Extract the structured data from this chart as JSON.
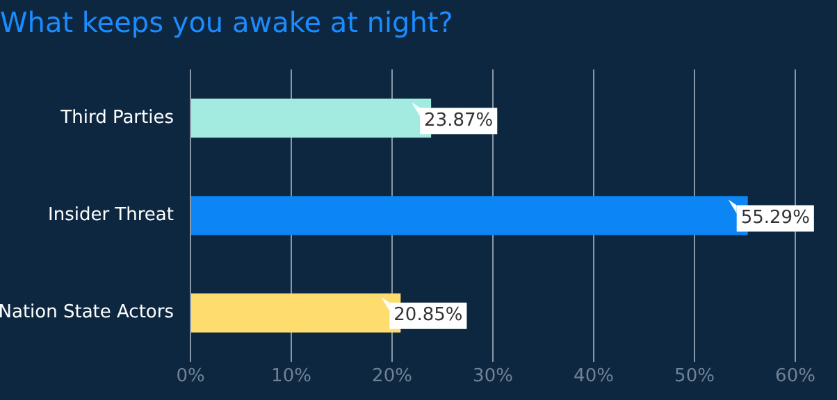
{
  "chart_data": {
    "type": "bar",
    "orientation": "horizontal",
    "title": "What keeps you awake at night?",
    "categories": [
      "Third Parties",
      "Insider Threat",
      "Nation State Actors"
    ],
    "values": [
      23.87,
      55.29,
      20.85
    ],
    "colors": [
      "#a3ebe1",
      "#0d86f5",
      "#ffdc6e"
    ],
    "value_labels": [
      "23.87%",
      "55.29%",
      "20.85%"
    ],
    "xlim": [
      0,
      60
    ],
    "xticks": [
      {
        "value": 0,
        "label": "0%"
      },
      {
        "value": 10,
        "label": "10%"
      },
      {
        "value": 20,
        "label": "20%"
      },
      {
        "value": 30,
        "label": "30%"
      },
      {
        "value": 40,
        "label": "40%"
      },
      {
        "value": 50,
        "label": "50%"
      },
      {
        "value": 60,
        "label": "60%"
      }
    ],
    "grid": "x",
    "legend": false
  }
}
